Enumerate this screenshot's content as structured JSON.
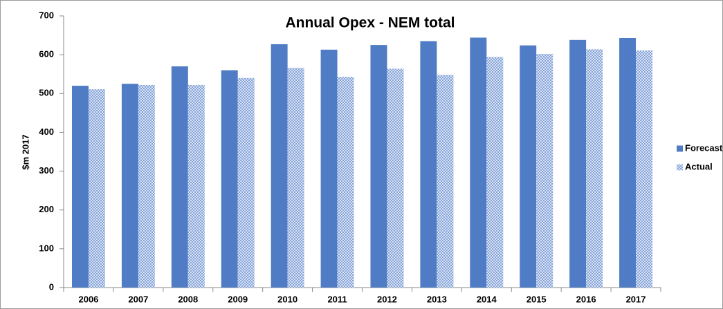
{
  "chart_data": {
    "type": "bar",
    "title": "Annual Opex - NEM total",
    "y_label": "$m 2017",
    "categories": [
      "2006",
      "2007",
      "2008",
      "2009",
      "2010",
      "2011",
      "2012",
      "2013",
      "2014",
      "2015",
      "2016",
      "2017"
    ],
    "series": [
      {
        "name": "Forecast",
        "color": "#4f7cc4",
        "hatch": false,
        "values": [
          520,
          525,
          570,
          560,
          627,
          613,
          625,
          635,
          644,
          624,
          638,
          643
        ]
      },
      {
        "name": "Actual",
        "color": "#7f9fd8",
        "hatch": true,
        "values": [
          511,
          522,
          522,
          540,
          566,
          543,
          564,
          548,
          594,
          602,
          614,
          611
        ]
      }
    ],
    "ylim": [
      0,
      700
    ],
    "yticks": [
      0,
      100,
      200,
      300,
      400,
      500,
      600,
      700
    ],
    "grid": false,
    "legend": "right"
  }
}
